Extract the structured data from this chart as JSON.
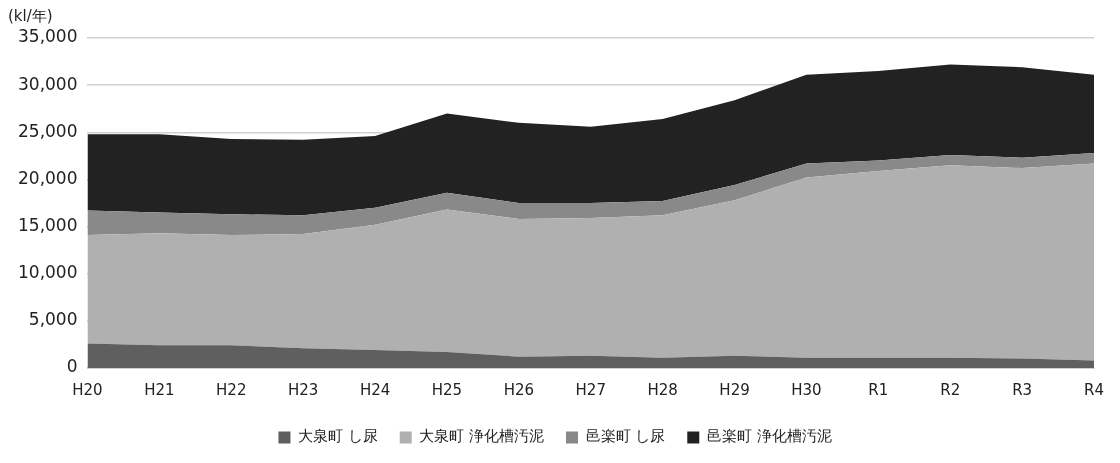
{
  "chart_data": {
    "type": "area",
    "stacked": true,
    "ylabel": "(kl/年)",
    "categories": [
      "H20",
      "H21",
      "H22",
      "H23",
      "H24",
      "H25",
      "H26",
      "H27",
      "H28",
      "H29",
      "H30",
      "R1",
      "R2",
      "R3",
      "R4"
    ],
    "series": [
      {
        "name": "大泉町 し尿",
        "color": "#5f5f5f",
        "values": [
          2600,
          2400,
          2400,
          2100,
          1900,
          1700,
          1200,
          1300,
          1100,
          1300,
          1100,
          1100,
          1100,
          1000,
          800
        ]
      },
      {
        "name": "大泉町 浄化槽汚泥",
        "color": "#b0b0b0",
        "values": [
          11500,
          11900,
          11700,
          12100,
          13300,
          15100,
          14600,
          14600,
          15100,
          16500,
          19100,
          19800,
          20400,
          20200,
          20900
        ]
      },
      {
        "name": "邑楽町 し尿",
        "color": "#898989",
        "values": [
          2600,
          2200,
          2200,
          2000,
          1800,
          1800,
          1700,
          1600,
          1500,
          1600,
          1500,
          1100,
          1100,
          1100,
          1100
        ]
      },
      {
        "name": "邑楽町 浄化槽汚泥",
        "color": "#222222",
        "values": [
          8100,
          8300,
          8000,
          8000,
          7600,
          8400,
          8500,
          8100,
          8700,
          9000,
          9400,
          9500,
          9600,
          9600,
          8300
        ]
      }
    ],
    "ylim": [
      0,
      35000
    ],
    "yticks": [
      0,
      {
        "value": 5000,
        "label": "5,000"
      },
      {
        "value": 10000,
        "label": "10,000"
      },
      {
        "value": 15000,
        "label": "15,000"
      },
      {
        "value": 20000,
        "label": "20,000"
      },
      {
        "value": 25000,
        "label": "25,000"
      },
      {
        "value": 30000,
        "label": "30,000"
      },
      {
        "value": 35000,
        "label": "35,000"
      }
    ],
    "grid": "y",
    "legend": "bottom"
  }
}
